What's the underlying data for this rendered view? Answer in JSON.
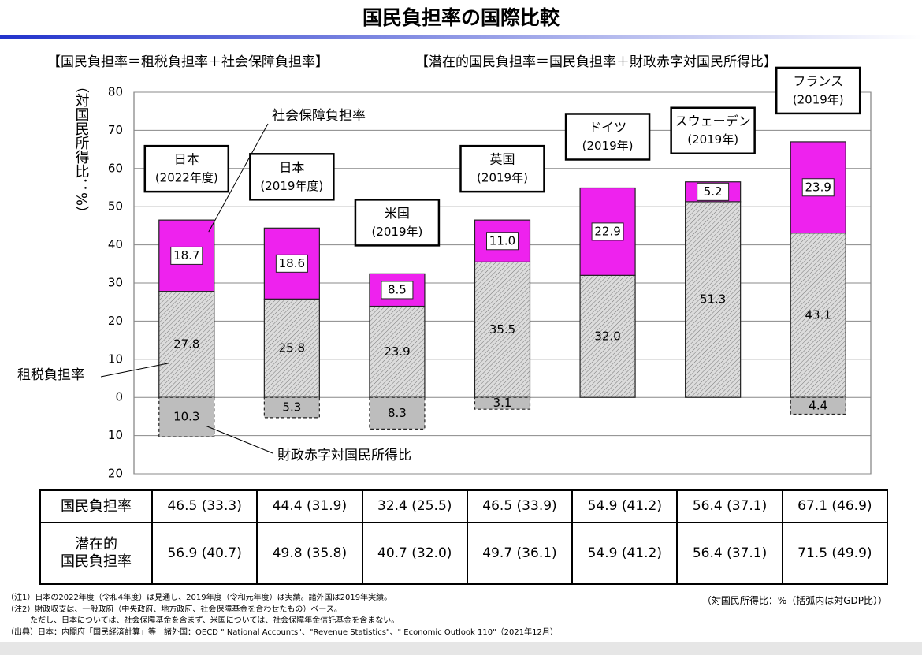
{
  "chart_data": {
    "type": "stacked-bar",
    "title": "国民負担率の国際比較",
    "subtitles": [
      "【国民負担率＝租税負担率＋社会保障負担率】",
      "【潜在的国民負担率＝国民負担率＋財政赤字対国民所得比】"
    ],
    "y_label": "（対国民所得比：%）",
    "categories": [
      [
        "日本",
        "(2022年度)"
      ],
      [
        "日本",
        "(2019年度)"
      ],
      [
        "米国",
        "(2019年)"
      ],
      [
        "英国",
        "(2019年)"
      ],
      [
        "ドイツ",
        "(2019年)"
      ],
      [
        "スウェーデン",
        "(2019年)"
      ],
      [
        "フランス",
        "(2019年)"
      ]
    ],
    "series": [
      {
        "name": "租税負担率",
        "color": "#dcdcdc",
        "hatch": true,
        "values": [
          27.8,
          25.8,
          23.9,
          35.5,
          32.0,
          51.3,
          43.1
        ],
        "value_labels": [
          "27.8",
          "25.8",
          "23.9",
          "35.5",
          "32.0",
          "51.3",
          "43.1"
        ]
      },
      {
        "name": "社会保障負担率",
        "color": "#ee22ee",
        "values": [
          18.7,
          18.6,
          8.5,
          11.0,
          22.9,
          5.2,
          23.9
        ],
        "value_labels": [
          "18.7",
          "18.6",
          "8.5",
          "11.0",
          "22.9",
          "5.2",
          "23.9"
        ]
      },
      {
        "name": "財政赤字対国民所得比",
        "color": "#bdbdbd",
        "dashed": true,
        "values": [
          -10.3,
          -5.3,
          -8.3,
          -3.1,
          null,
          null,
          -4.4
        ],
        "value_labels": [
          "10.3",
          "5.3",
          "8.3",
          "3.1",
          null,
          null,
          "4.4"
        ]
      }
    ],
    "ylim": [
      -20,
      80
    ],
    "yticks": [
      {
        "value": -20,
        "label": "20"
      },
      {
        "value": -10,
        "label": "10"
      },
      0,
      10,
      20,
      30,
      40,
      50,
      60,
      70,
      80
    ],
    "grid": true
  },
  "table": {
    "rows": [
      {
        "header": [
          "国民負担率"
        ],
        "cells": [
          "46.5 (33.3)",
          "44.4 (31.9)",
          "32.4 (25.5)",
          "46.5 (33.9)",
          "54.9 (41.2)",
          "56.4 (37.1)",
          "67.1 (46.9)"
        ]
      },
      {
        "header": [
          "潜在的",
          "国民負担率"
        ],
        "cells": [
          "56.9 (40.7)",
          "49.8 (35.8)",
          "40.7 (32.0)",
          "49.7 (36.1)",
          "54.9 (41.2)",
          "56.4 (37.1)",
          "71.5 (49.9)"
        ]
      }
    ]
  },
  "unit_note": "（対国民所得比：%（括弧内は対GDP比））",
  "notes": [
    "（注1）日本の2022年度（令和4年度）は見通し、2019年度（令和元年度）は実績。諸外国は2019年実績。",
    "（注2）財政収支は、一般政府（中央政府、地方政府、社会保障基金を合わせたもの）ベース。",
    "　　　ただし、日本については、社会保障基金を含まず、米国については、社会保障年金信託基金を含まない。",
    "（出典）日本：内閣府「国民経済計算」等　諸外国：OECD \" National Accounts\"、\"Revenue Statistics\"、\" Economic Outlook 110\"（2021年12月）"
  ]
}
